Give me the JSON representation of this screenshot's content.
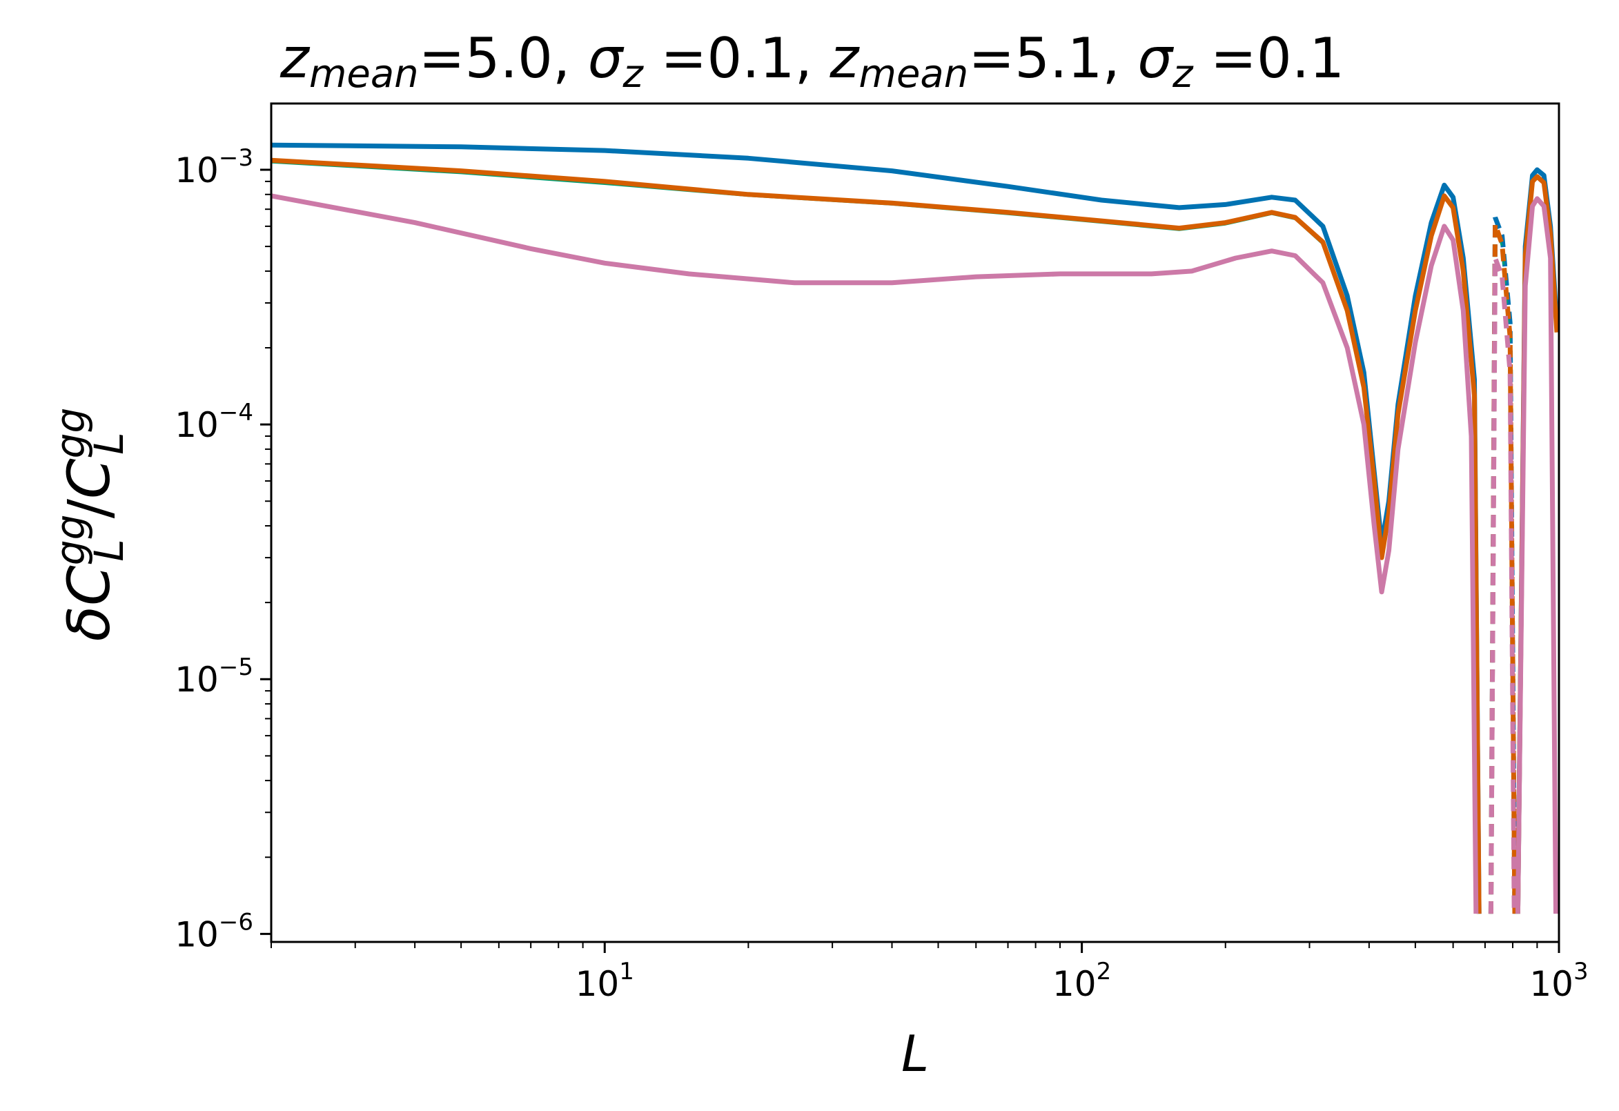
{
  "chart_data": {
    "type": "line",
    "title": {
      "parts": [
        {
          "italic": "z",
          "sub": "mean",
          "text": "=5.0, "
        },
        {
          "italic": "σ",
          "sub": "z",
          "text": " =0.1, "
        },
        {
          "italic": "z",
          "sub": "mean",
          "text": "=5.1, "
        },
        {
          "italic": "σ",
          "sub": "z",
          "text": " =0.1"
        }
      ]
    },
    "xlabel": "L",
    "ylabel": {
      "delta": "δ",
      "c1": "C",
      "sup1": "gg",
      "sub1": "L",
      "slash": "/",
      "c2": "C",
      "sup2": "gg",
      "sub2": "L"
    },
    "xscale": "log",
    "yscale": "log",
    "xlim": [
      2,
      1000
    ],
    "ylim": [
      9.3e-07,
      0.00182
    ],
    "xticks": [
      {
        "value": 10,
        "base": "10",
        "exp": "1"
      },
      {
        "value": 100,
        "base": "10",
        "exp": "2"
      },
      {
        "value": 1000,
        "base": "10",
        "exp": "3"
      }
    ],
    "yticks": [
      {
        "value": 1e-06,
        "base": "10",
        "exp": "−6"
      },
      {
        "value": 1e-05,
        "base": "10",
        "exp": "−5"
      },
      {
        "value": 0.0001,
        "base": "10",
        "exp": "−4"
      },
      {
        "value": 0.001,
        "base": "10",
        "exp": "−3"
      }
    ],
    "grid": false,
    "legend": "none",
    "series": [
      {
        "name": "series-blue",
        "color": "#0072b2",
        "points": [
          [
            2,
            0.00125
          ],
          [
            5,
            0.00123
          ],
          [
            10,
            0.00119
          ],
          [
            20,
            0.00111
          ],
          [
            40,
            0.00099
          ],
          [
            70,
            0.00086
          ],
          [
            110,
            0.00076
          ],
          [
            160,
            0.00071
          ],
          [
            200,
            0.00073
          ],
          [
            250,
            0.00078
          ],
          [
            280,
            0.00076
          ],
          [
            320,
            0.0006
          ],
          [
            360,
            0.00032
          ],
          [
            390,
            0.00016
          ],
          [
            410,
            6.5e-05
          ],
          [
            425,
            3.4e-05
          ],
          [
            440,
            5e-05
          ],
          [
            460,
            0.00012
          ],
          [
            500,
            0.00032
          ],
          [
            540,
            0.00062
          ],
          [
            575,
            0.00087
          ],
          [
            600,
            0.00078
          ],
          [
            630,
            0.00045
          ],
          [
            665,
            0.00015
          ],
          [
            680,
            1.2e-06
          ]
        ],
        "dashed": [
          [
            720,
            1.2e-06
          ],
          [
            735,
            0.00065
          ],
          [
            760,
            0.00055
          ],
          [
            790,
            0.00025
          ],
          [
            808,
            1.2e-06
          ]
        ],
        "points2": [
          [
            820,
            1.2e-06
          ],
          [
            850,
            0.0005
          ],
          [
            880,
            0.00095
          ],
          [
            900,
            0.001
          ],
          [
            930,
            0.00095
          ],
          [
            960,
            0.0006
          ],
          [
            990,
            0.00025
          ]
        ]
      },
      {
        "name": "series-green",
        "color": "#009e73",
        "points": [
          [
            2,
            0.00107
          ],
          [
            5,
            0.00097
          ],
          [
            10,
            0.00088
          ],
          [
            20,
            0.00079
          ],
          [
            40,
            0.00073
          ],
          [
            70,
            0.00067
          ],
          [
            110,
            0.00062
          ],
          [
            160,
            0.00058
          ],
          [
            200,
            0.00061
          ],
          [
            250,
            0.00067
          ],
          [
            280,
            0.00064
          ],
          [
            320,
            0.00051
          ],
          [
            360,
            0.00028
          ],
          [
            390,
            0.00014
          ],
          [
            410,
            6e-05
          ],
          [
            425,
            3e-05
          ],
          [
            440,
            4.5e-05
          ],
          [
            460,
            0.00011
          ],
          [
            500,
            0.00028
          ],
          [
            540,
            0.00055
          ],
          [
            575,
            0.00078
          ],
          [
            600,
            0.0007
          ],
          [
            630,
            0.0004
          ],
          [
            665,
            0.00013
          ],
          [
            680,
            1.2e-06
          ]
        ],
        "dashed": [
          [
            720,
            1.2e-06
          ],
          [
            735,
            0.0006
          ],
          [
            760,
            0.0005
          ],
          [
            790,
            0.00022
          ],
          [
            808,
            1.2e-06
          ]
        ],
        "points2": [
          [
            820,
            1.2e-06
          ],
          [
            850,
            0.00045
          ],
          [
            880,
            0.00088
          ],
          [
            900,
            0.00093
          ],
          [
            930,
            0.00088
          ],
          [
            960,
            0.00055
          ],
          [
            990,
            0.00023
          ]
        ]
      },
      {
        "name": "series-orange",
        "color": "#d55e00",
        "points": [
          [
            2,
            0.00109
          ],
          [
            5,
            0.00099
          ],
          [
            10,
            0.0009
          ],
          [
            20,
            0.0008
          ],
          [
            40,
            0.00074
          ],
          [
            70,
            0.00068
          ],
          [
            110,
            0.00063
          ],
          [
            160,
            0.00059
          ],
          [
            200,
            0.00062
          ],
          [
            250,
            0.00068
          ],
          [
            280,
            0.00065
          ],
          [
            320,
            0.00052
          ],
          [
            360,
            0.00028
          ],
          [
            390,
            0.00014
          ],
          [
            410,
            6e-05
          ],
          [
            425,
            3e-05
          ],
          [
            440,
            4.5e-05
          ],
          [
            460,
            0.00011
          ],
          [
            500,
            0.00028
          ],
          [
            540,
            0.00055
          ],
          [
            575,
            0.00079
          ],
          [
            600,
            0.00071
          ],
          [
            630,
            0.0004
          ],
          [
            665,
            0.00013
          ],
          [
            680,
            1.2e-06
          ]
        ],
        "dashed": [
          [
            720,
            1.2e-06
          ],
          [
            735,
            0.00061
          ],
          [
            760,
            0.00051
          ],
          [
            790,
            0.00022
          ],
          [
            808,
            1.2e-06
          ]
        ],
        "points2": [
          [
            820,
            1.2e-06
          ],
          [
            850,
            0.00046
          ],
          [
            880,
            0.0009
          ],
          [
            900,
            0.00094
          ],
          [
            930,
            0.00089
          ],
          [
            960,
            0.00056
          ],
          [
            990,
            0.00023
          ]
        ]
      },
      {
        "name": "series-pink",
        "color": "#cc79a7",
        "points": [
          [
            2,
            0.00079
          ],
          [
            4,
            0.00062
          ],
          [
            7,
            0.00049
          ],
          [
            10,
            0.00043
          ],
          [
            15,
            0.00039
          ],
          [
            25,
            0.00036
          ],
          [
            40,
            0.00036
          ],
          [
            60,
            0.00038
          ],
          [
            90,
            0.00039
          ],
          [
            140,
            0.00039
          ],
          [
            170,
            0.0004
          ],
          [
            210,
            0.00045
          ],
          [
            250,
            0.00048
          ],
          [
            280,
            0.00046
          ],
          [
            320,
            0.00036
          ],
          [
            360,
            0.0002
          ],
          [
            390,
            0.0001
          ],
          [
            410,
            4e-05
          ],
          [
            425,
            2.2e-05
          ],
          [
            440,
            3.2e-05
          ],
          [
            460,
            8e-05
          ],
          [
            500,
            0.00021
          ],
          [
            540,
            0.00042
          ],
          [
            575,
            0.0006
          ],
          [
            600,
            0.00053
          ],
          [
            630,
            0.00028
          ],
          [
            655,
            9e-05
          ],
          [
            670,
            1.2e-06
          ]
        ],
        "dashed": [
          [
            720,
            1.2e-06
          ],
          [
            735,
            0.00045
          ],
          [
            760,
            0.00038
          ],
          [
            790,
            0.00016
          ],
          [
            806,
            1.2e-06
          ]
        ],
        "points2": [
          [
            820,
            1.2e-06
          ],
          [
            850,
            0.00035
          ],
          [
            880,
            0.00072
          ],
          [
            900,
            0.00077
          ],
          [
            930,
            0.00072
          ],
          [
            960,
            0.00045
          ],
          [
            985,
            1.2e-06
          ]
        ]
      }
    ]
  }
}
